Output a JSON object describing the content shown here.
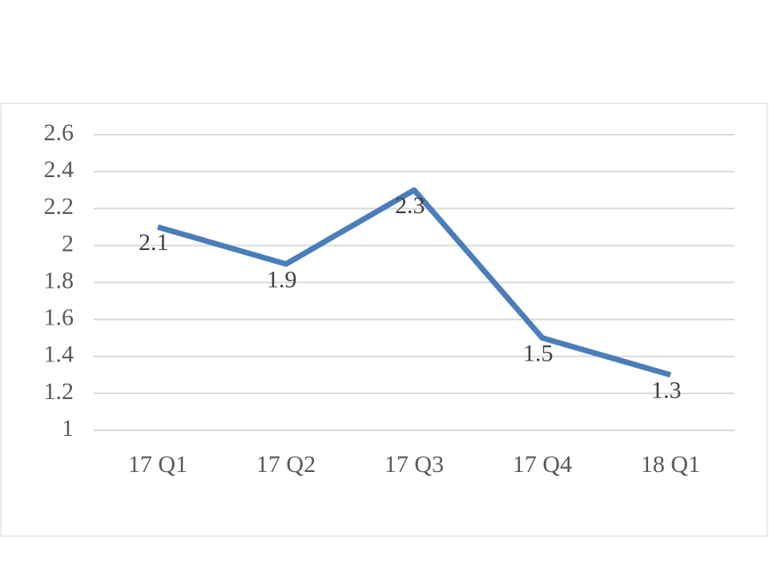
{
  "chart_data": {
    "type": "line",
    "categories": [
      "17 Q1",
      "17 Q2",
      "17 Q3",
      "17 Q4",
      "18 Q1"
    ],
    "values": [
      2.1,
      1.9,
      2.3,
      1.5,
      1.3
    ],
    "color": "#4a7ebb",
    "ylim": [
      1,
      2.6
    ],
    "yticks": [
      1,
      1.2,
      1.4,
      1.6,
      1.8,
      2,
      2.2,
      2.4,
      2.6
    ],
    "grid": true
  }
}
